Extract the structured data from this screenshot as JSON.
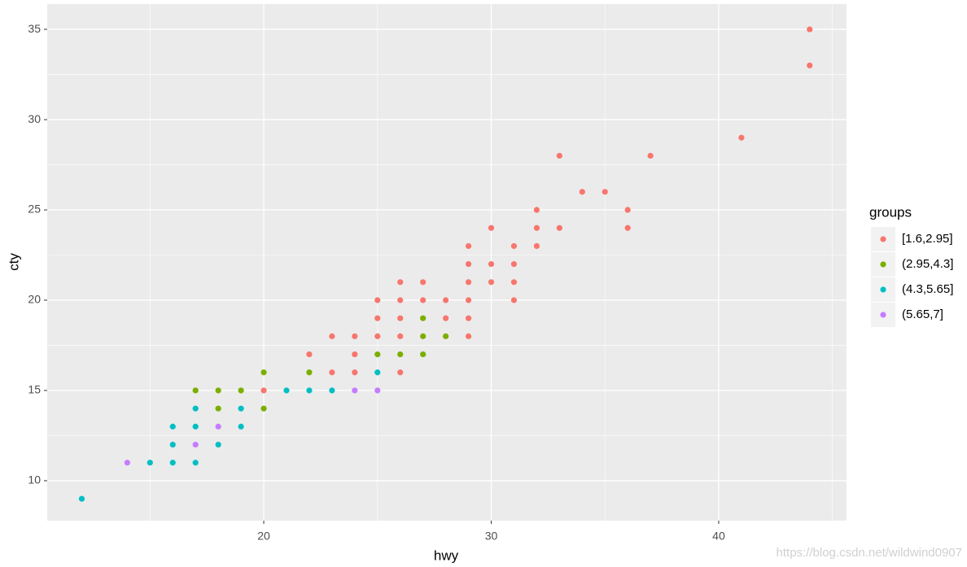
{
  "chart_data": {
    "type": "scatter",
    "x_label": "hwy",
    "y_label": "cty",
    "legend_title": "groups",
    "watermark": "https://blog.csdn.net/wildwind0907",
    "xlim": [
      10.48,
      45.62
    ],
    "ylim": [
      7.79,
      36.4
    ],
    "xticks": [
      20,
      30,
      40
    ],
    "yticks": [
      10,
      15,
      20,
      25,
      30,
      35
    ],
    "xminor": [
      15,
      25,
      35,
      45
    ],
    "yminor": [
      12.5,
      17.5,
      22.5,
      27.5,
      32.5
    ],
    "grid": true,
    "legend": "right",
    "series": [
      {
        "name": "[1.6,2.95]",
        "color": "#F8766D",
        "x": [
          44,
          44,
          41,
          37,
          33,
          34,
          35,
          36,
          36,
          32,
          32,
          33,
          32,
          30,
          29,
          31,
          29,
          30,
          31,
          29,
          30,
          31,
          31,
          26,
          27,
          25,
          26,
          27,
          28,
          29,
          25,
          26,
          28,
          29,
          23,
          24,
          25,
          26,
          29,
          22,
          24,
          23,
          24,
          26,
          20
        ],
        "values": [
          35,
          33,
          29,
          28,
          28,
          26,
          26,
          25,
          24,
          25,
          24,
          24,
          23,
          24,
          23,
          23,
          22,
          22,
          22,
          21,
          21,
          21,
          20,
          21,
          21,
          20,
          20,
          20,
          20,
          20,
          19,
          19,
          19,
          19,
          18,
          18,
          18,
          18,
          18,
          17,
          17,
          16,
          16,
          16,
          15
        ]
      },
      {
        "name": "(2.95,4.3]",
        "color": "#7CAE00",
        "x": [
          27,
          27,
          28,
          25,
          26,
          27,
          22,
          20,
          17,
          18,
          19,
          18,
          20
        ],
        "values": [
          19,
          18,
          18,
          17,
          17,
          17,
          16,
          16,
          15,
          15,
          15,
          14,
          14
        ]
      },
      {
        "name": "(4.3,5.65]",
        "color": "#00BFC4",
        "x": [
          12,
          15,
          16,
          17,
          16,
          18,
          16,
          17,
          19,
          17,
          19,
          21,
          22,
          23,
          25
        ],
        "values": [
          9,
          11,
          11,
          11,
          12,
          12,
          13,
          13,
          13,
          14,
          14,
          15,
          15,
          15,
          16
        ]
      },
      {
        "name": "(5.65,7]",
        "color": "#C77CFF",
        "x": [
          14,
          17,
          18,
          24,
          25
        ],
        "values": [
          11,
          12,
          13,
          15,
          15
        ]
      }
    ]
  }
}
